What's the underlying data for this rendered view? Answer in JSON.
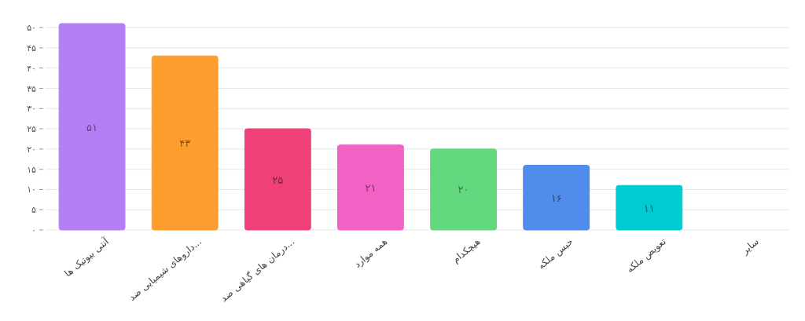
{
  "chart_data": {
    "type": "bar",
    "categories": [
      "آنتی بیوتیک ها",
      "داروهای شیمیایی ضد...",
      "درمان های گیاهی ضد...",
      "همه موارد",
      "هیچکدام",
      "حبس ملکه",
      "تعویض ملکه",
      "سایر"
    ],
    "values": [
      51,
      43,
      25,
      21,
      20,
      16,
      11,
      0
    ],
    "colors": [
      "#b47ff5",
      "#fd9e2f",
      "#ef4177",
      "#f262c5",
      "#62d97e",
      "#4f8cec",
      "#00cbd1",
      "#f7c948"
    ],
    "value_labels": [
      "۵۱",
      "۴۳",
      "۲۵",
      "۲۱",
      "۲۰",
      "۱۶",
      "۱۱",
      null
    ],
    "ylim": [
      0,
      51
    ],
    "yticks": [
      {
        "value": 0,
        "label": "۰"
      },
      {
        "value": 5,
        "label": "۵"
      },
      {
        "value": 10,
        "label": "۱۰"
      },
      {
        "value": 15,
        "label": "۱۵"
      },
      {
        "value": 20,
        "label": "۲۰"
      },
      {
        "value": 25,
        "label": "۲۵"
      },
      {
        "value": 30,
        "label": "۳۰"
      },
      {
        "value": 35,
        "label": "۳۵"
      },
      {
        "value": 40,
        "label": "۴۰"
      },
      {
        "value": 45,
        "label": "۴۵"
      },
      {
        "value": 50,
        "label": "۵۰"
      }
    ],
    "grid": "y"
  }
}
